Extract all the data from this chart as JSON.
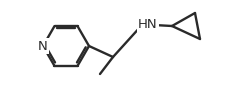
{
  "bg_color": "#ffffff",
  "line_color": "#2a2a2a",
  "line_width": 1.7,
  "font_size": 8.5,
  "text_color": "#2a2a2a",
  "HN_label": "HN",
  "N_label": "N",
  "figsize": [
    2.25,
    0.97
  ],
  "dpi": 100
}
